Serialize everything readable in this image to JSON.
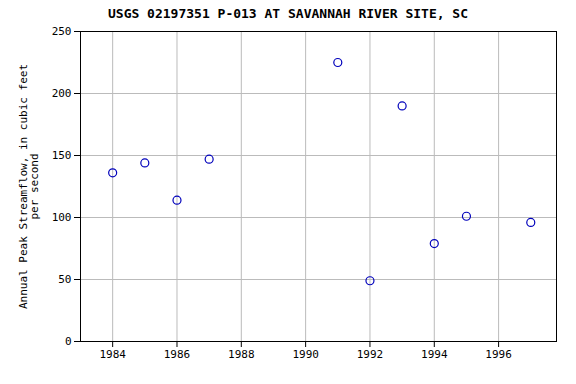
{
  "chart_data": {
    "type": "scatter",
    "title": "USGS 02197351 P-013 AT SAVANNAH RIVER SITE, SC",
    "ylabel": "Annual Peak Streamflow, in cubic feet\nper second",
    "x": [
      1984,
      1985,
      1986,
      1987,
      1991,
      1992,
      1993,
      1994,
      1995,
      1997
    ],
    "values": [
      136,
      144,
      114,
      147,
      225,
      49,
      190,
      79,
      101,
      96
    ],
    "xlim": [
      1983.0,
      1997.8
    ],
    "ylim": [
      0,
      250
    ],
    "xticks": [
      1984,
      1986,
      1988,
      1990,
      1992,
      1994,
      1996
    ],
    "yticks": [
      0,
      50,
      100,
      150,
      200,
      250
    ],
    "color": "#0000bb",
    "marker": "circle",
    "grid": true
  }
}
